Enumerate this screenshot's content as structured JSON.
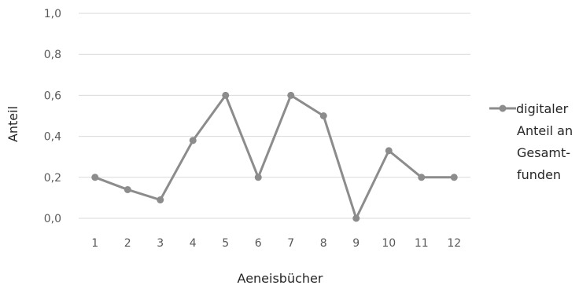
{
  "chart_data": {
    "type": "line",
    "xlabel": "Aeneisbücher",
    "ylabel": "Anteil",
    "categories": [
      "1",
      "2",
      "3",
      "4",
      "5",
      "6",
      "7",
      "8",
      "9",
      "10",
      "11",
      "12"
    ],
    "series": [
      {
        "name": "digitaler Anteil an Gesamt-funden",
        "legend_lines": [
          "digitaler",
          "Anteil an",
          "Gesamt-",
          "funden"
        ],
        "values": [
          0.2,
          0.14,
          0.09,
          0.38,
          0.6,
          0.2,
          0.6,
          0.5,
          0.0,
          0.33,
          0.2,
          0.2
        ],
        "color": "#8c8c8c"
      }
    ],
    "ylim": [
      0,
      1
    ],
    "y_ticks": [
      "0,0",
      "0,2",
      "0,4",
      "0,6",
      "0,8",
      "1,0"
    ],
    "grid": "horizontal",
    "legend_position": "right"
  }
}
